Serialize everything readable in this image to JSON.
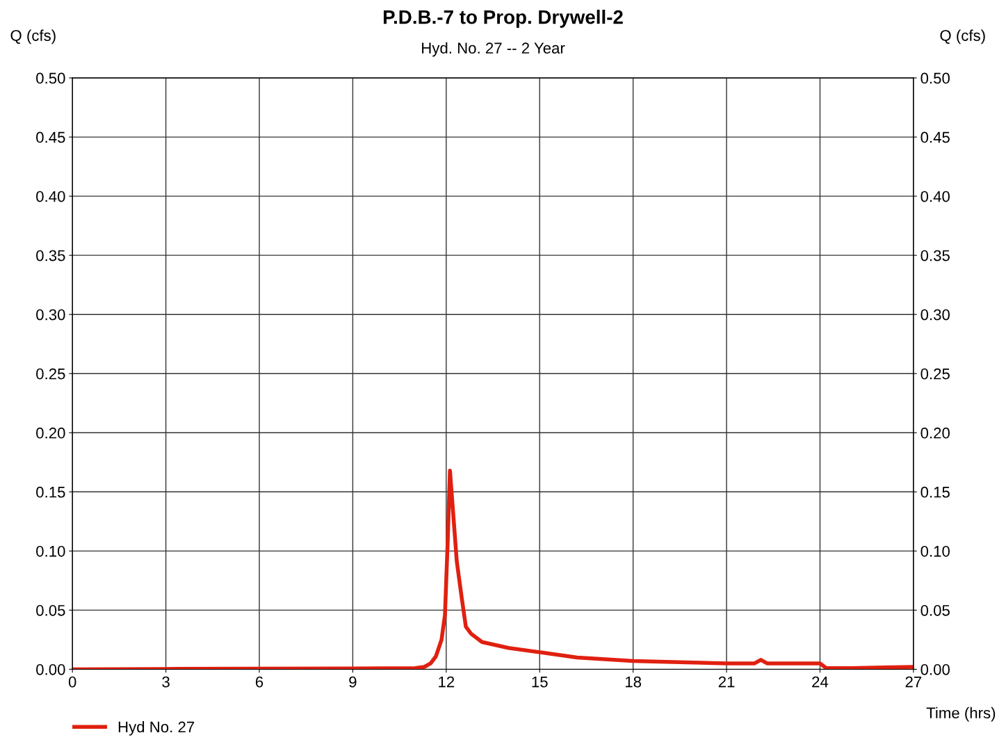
{
  "chart_data": {
    "type": "line",
    "title": "P.D.B.-7 to Prop. Drywell-2",
    "subtitle": "Hyd. No. 27 -- 2 Year",
    "xlabel": "Time (hrs)",
    "ylabel": "Q (cfs)",
    "y2label": "Q (cfs)",
    "xlim": [
      0,
      27
    ],
    "xticks": [
      0,
      3,
      6,
      9,
      12,
      15,
      18,
      21,
      24,
      27
    ],
    "ylim": [
      0,
      0.5
    ],
    "yticks": [
      {
        "value": 0,
        "label": "0.00"
      },
      {
        "value": 0.05,
        "label": "0.05"
      },
      {
        "value": 0.1,
        "label": "0.10"
      },
      {
        "value": 0.15,
        "label": "0.15"
      },
      {
        "value": 0.2,
        "label": "0.20"
      },
      {
        "value": 0.25,
        "label": "0.25"
      },
      {
        "value": 0.3,
        "label": "0.30"
      },
      {
        "value": 0.35,
        "label": "0.35"
      },
      {
        "value": 0.4,
        "label": "0.40"
      },
      {
        "value": 0.45,
        "label": "0.45"
      },
      {
        "value": 0.5,
        "label": "0.50"
      }
    ],
    "y2lim": [
      0,
      0.5
    ],
    "y2ticks": [
      {
        "value": 0,
        "label": "0.00"
      },
      {
        "value": 0.05,
        "label": "0.05"
      },
      {
        "value": 0.1,
        "label": "0.10"
      },
      {
        "value": 0.15,
        "label": "0.15"
      },
      {
        "value": 0.2,
        "label": "0.20"
      },
      {
        "value": 0.25,
        "label": "0.25"
      },
      {
        "value": 0.3,
        "label": "0.30"
      },
      {
        "value": 0.35,
        "label": "0.35"
      },
      {
        "value": 0.4,
        "label": "0.40"
      },
      {
        "value": 0.45,
        "label": "0.45"
      },
      {
        "value": 0.5,
        "label": "0.50"
      }
    ],
    "grid": true,
    "legend": "bottom left",
    "marker": "none",
    "line_style": "solid",
    "series": [
      {
        "name": "Hyd No. 27",
        "color": "#e02010",
        "x": [
          0,
          3,
          6,
          9,
          11.0,
          11.3,
          11.5,
          11.67,
          11.85,
          11.96,
          12.05,
          12.12,
          12.2,
          12.34,
          12.5,
          12.63,
          12.8,
          13.15,
          14,
          15.1,
          16.2,
          18,
          19.5,
          21,
          21.9,
          22.1,
          22.3,
          23,
          24,
          24.2,
          25,
          27
        ],
        "values": [
          0,
          0.0003,
          0.0005,
          0.0007,
          0.001,
          0.002,
          0.005,
          0.011,
          0.025,
          0.046,
          0.11,
          0.168,
          0.14,
          0.091,
          0.06,
          0.036,
          0.03,
          0.023,
          0.018,
          0.014,
          0.01,
          0.007,
          0.006,
          0.005,
          0.005,
          0.008,
          0.005,
          0.005,
          0.005,
          0.001,
          0.001,
          0.002
        ]
      }
    ]
  }
}
